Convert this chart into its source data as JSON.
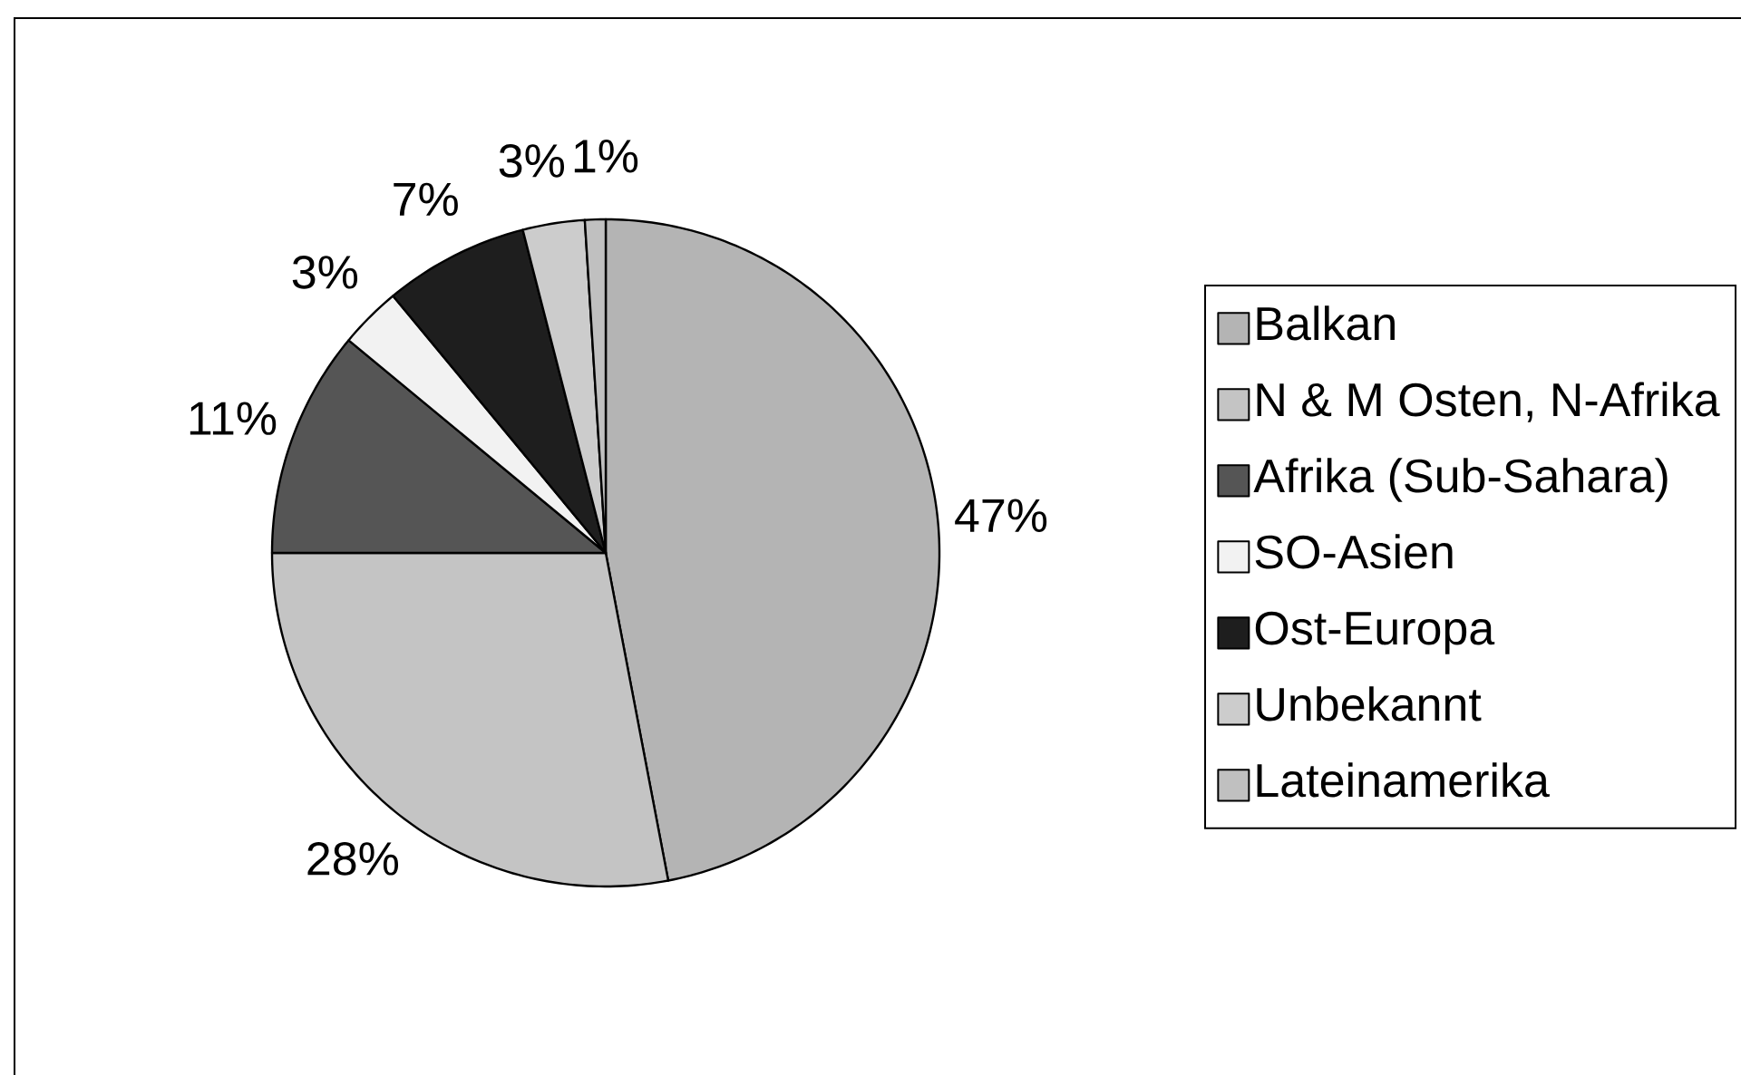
{
  "chart_data": {
    "type": "pie",
    "categories": [
      "Balkan",
      "N & M Osten, N-Afrika",
      "Afrika (Sub-Sahara)",
      "SO-Asien",
      "Ost-Europa",
      "Unbekannt",
      "Lateinamerika"
    ],
    "values": [
      47,
      28,
      11,
      3,
      7,
      3,
      1
    ],
    "value_labels": [
      "47%",
      "28%",
      "11%",
      "3%",
      "7%",
      "3%",
      "1%"
    ],
    "colors": [
      "#b4b4b4",
      "#c4c4c4",
      "#555555",
      "#f2f2f2",
      "#1e1e1e",
      "#cccccc",
      "#c0c0c0"
    ],
    "legend": "right"
  }
}
